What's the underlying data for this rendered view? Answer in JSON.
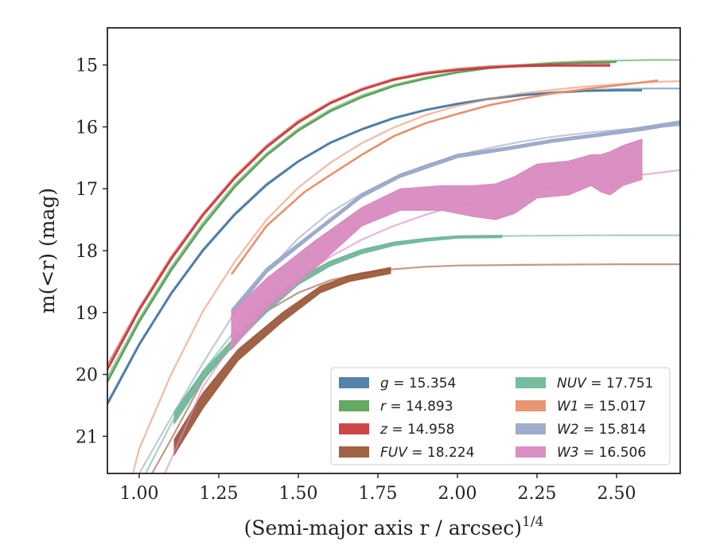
{
  "chart_data": {
    "type": "line",
    "xlabel": {
      "main": "(Semi-major axis r / arcsec)",
      "sup": "1/4"
    },
    "ylabel": "m(<r) (mag)",
    "xlim": [
      0.9,
      2.7
    ],
    "ylim": [
      21.6,
      14.4
    ],
    "y_inverted": true,
    "xticks": [
      1.0,
      1.25,
      1.5,
      1.75,
      2.0,
      2.25,
      2.5
    ],
    "xtick_labels": [
      "1.00",
      "1.25",
      "1.50",
      "1.75",
      "2.00",
      "2.25",
      "2.50"
    ],
    "yticks": [
      15,
      16,
      17,
      18,
      19,
      20,
      21
    ],
    "ytick_labels": [
      "15",
      "16",
      "17",
      "18",
      "19",
      "20",
      "21"
    ],
    "grid": false,
    "legend_position": "lower-right",
    "series": [
      {
        "name": "g = 15.354",
        "legend": {
          "var": "g",
          "value": "15.354"
        },
        "color": "#4c7ba6",
        "model": [
          [
            0.9,
            20.45
          ],
          [
            1.0,
            19.5
          ],
          [
            1.1,
            18.68
          ],
          [
            1.2,
            17.98
          ],
          [
            1.3,
            17.4
          ],
          [
            1.4,
            16.92
          ],
          [
            1.5,
            16.55
          ],
          [
            1.6,
            16.25
          ],
          [
            1.7,
            16.03
          ],
          [
            1.8,
            15.85
          ],
          [
            1.9,
            15.72
          ],
          [
            2.0,
            15.62
          ],
          [
            2.1,
            15.54
          ],
          [
            2.2,
            15.48
          ],
          [
            2.3,
            15.44
          ],
          [
            2.4,
            15.41
          ],
          [
            2.5,
            15.39
          ],
          [
            2.6,
            15.38
          ],
          [
            2.7,
            15.38
          ]
        ],
        "data": [
          [
            0.9,
            20.48
          ],
          [
            1.0,
            19.52
          ],
          [
            1.1,
            18.7
          ],
          [
            1.2,
            18.0
          ],
          [
            1.3,
            17.42
          ],
          [
            1.4,
            16.94
          ],
          [
            1.5,
            16.56
          ],
          [
            1.6,
            16.26
          ],
          [
            1.7,
            16.04
          ],
          [
            1.8,
            15.86
          ],
          [
            1.9,
            15.73
          ],
          [
            2.0,
            15.63
          ],
          [
            2.1,
            15.55
          ],
          [
            2.2,
            15.49
          ],
          [
            2.3,
            15.45
          ],
          [
            2.4,
            15.42
          ],
          [
            2.5,
            15.41
          ],
          [
            2.58,
            15.41
          ]
        ],
        "band": []
      },
      {
        "name": "r = 14.893",
        "legend": {
          "var": "r",
          "value": "14.893"
        },
        "color": "#5ba35b",
        "model": [
          [
            0.9,
            20.05
          ],
          [
            1.0,
            19.1
          ],
          [
            1.1,
            18.27
          ],
          [
            1.2,
            17.55
          ],
          [
            1.3,
            16.93
          ],
          [
            1.4,
            16.43
          ],
          [
            1.5,
            16.03
          ],
          [
            1.6,
            15.72
          ],
          [
            1.7,
            15.49
          ],
          [
            1.8,
            15.32
          ],
          [
            1.9,
            15.2
          ],
          [
            2.0,
            15.11
          ],
          [
            2.1,
            15.04
          ],
          [
            2.2,
            15.0
          ],
          [
            2.3,
            14.96
          ],
          [
            2.4,
            14.94
          ],
          [
            2.5,
            14.93
          ],
          [
            2.6,
            14.92
          ],
          [
            2.7,
            14.92
          ]
        ],
        "data": [
          [
            0.9,
            20.12
          ],
          [
            1.0,
            19.15
          ],
          [
            1.1,
            18.32
          ],
          [
            1.2,
            17.6
          ],
          [
            1.3,
            16.97
          ],
          [
            1.4,
            16.46
          ],
          [
            1.5,
            16.06
          ],
          [
            1.6,
            15.75
          ],
          [
            1.7,
            15.52
          ],
          [
            1.8,
            15.34
          ],
          [
            1.9,
            15.22
          ],
          [
            2.0,
            15.12
          ],
          [
            2.1,
            15.05
          ],
          [
            2.2,
            15.01
          ],
          [
            2.3,
            14.98
          ],
          [
            2.4,
            14.96
          ],
          [
            2.5,
            14.95
          ]
        ],
        "band": []
      },
      {
        "name": "z = 14.958",
        "legend": {
          "var": "z",
          "value": "14.958"
        },
        "color": "#cc3c3c",
        "model": [
          [
            0.9,
            19.85
          ],
          [
            1.0,
            18.92
          ],
          [
            1.1,
            18.1
          ],
          [
            1.2,
            17.4
          ],
          [
            1.3,
            16.8
          ],
          [
            1.4,
            16.3
          ],
          [
            1.5,
            15.9
          ],
          [
            1.6,
            15.6
          ],
          [
            1.7,
            15.38
          ],
          [
            1.8,
            15.22
          ],
          [
            1.9,
            15.12
          ],
          [
            2.0,
            15.06
          ],
          [
            2.1,
            15.02
          ],
          [
            2.2,
            15.0
          ],
          [
            2.3,
            14.99
          ],
          [
            2.4,
            14.98
          ],
          [
            2.48,
            14.98
          ]
        ],
        "data": [
          [
            0.9,
            19.92
          ],
          [
            1.0,
            18.96
          ],
          [
            1.1,
            18.14
          ],
          [
            1.2,
            17.43
          ],
          [
            1.3,
            16.83
          ],
          [
            1.4,
            16.33
          ],
          [
            1.5,
            15.93
          ],
          [
            1.6,
            15.62
          ],
          [
            1.7,
            15.4
          ],
          [
            1.8,
            15.24
          ],
          [
            1.9,
            15.14
          ],
          [
            2.0,
            15.08
          ],
          [
            2.1,
            15.04
          ],
          [
            2.2,
            15.02
          ],
          [
            2.3,
            15.01
          ],
          [
            2.4,
            15.01
          ],
          [
            2.48,
            15.01
          ]
        ],
        "band": []
      },
      {
        "name": "FUV = 18.224",
        "legend": {
          "var": "FUV",
          "value": "18.224"
        },
        "color": "#9c5a3c",
        "model": [
          [
            1.04,
            21.6
          ],
          [
            1.1,
            21.05
          ],
          [
            1.2,
            20.1
          ],
          [
            1.3,
            19.45
          ],
          [
            1.4,
            18.98
          ],
          [
            1.5,
            18.68
          ],
          [
            1.6,
            18.48
          ],
          [
            1.7,
            18.36
          ],
          [
            1.8,
            18.3
          ],
          [
            1.9,
            18.26
          ],
          [
            2.0,
            18.24
          ],
          [
            2.2,
            18.23
          ],
          [
            2.5,
            18.22
          ],
          [
            2.7,
            18.22
          ]
        ],
        "data": [],
        "band": [
          [
            1.11,
            21.05,
            21.3
          ],
          [
            1.2,
            20.3,
            20.55
          ],
          [
            1.31,
            19.6,
            19.78
          ],
          [
            1.45,
            19.0,
            19.15
          ],
          [
            1.57,
            18.57,
            18.68
          ],
          [
            1.66,
            18.4,
            18.5
          ],
          [
            1.79,
            18.27,
            18.37
          ]
        ]
      },
      {
        "name": "NUV = 17.751",
        "legend": {
          "var": "NUV",
          "value": "17.751"
        },
        "color": "#6fb89a",
        "model": [
          [
            1.02,
            21.6
          ],
          [
            1.1,
            20.8
          ],
          [
            1.2,
            19.95
          ],
          [
            1.3,
            19.3
          ],
          [
            1.4,
            18.82
          ],
          [
            1.5,
            18.45
          ],
          [
            1.6,
            18.18
          ],
          [
            1.7,
            18.0
          ],
          [
            1.8,
            17.88
          ],
          [
            1.9,
            17.81
          ],
          [
            2.0,
            17.78
          ],
          [
            2.2,
            17.76
          ],
          [
            2.5,
            17.75
          ],
          [
            2.7,
            17.75
          ]
        ],
        "data": [],
        "band": [
          [
            1.11,
            20.6,
            20.8
          ],
          [
            1.2,
            19.95,
            20.1
          ],
          [
            1.3,
            19.4,
            19.52
          ],
          [
            1.4,
            18.9,
            19.0
          ],
          [
            1.5,
            18.45,
            18.55
          ],
          [
            1.6,
            18.17,
            18.25
          ],
          [
            1.7,
            17.98,
            18.05
          ],
          [
            1.8,
            17.86,
            17.92
          ],
          [
            1.9,
            17.8,
            17.85
          ],
          [
            2.0,
            17.76,
            17.8
          ],
          [
            2.14,
            17.75,
            17.79
          ]
        ]
      },
      {
        "name": "W1 = 15.017",
        "legend": {
          "var": "W1",
          "value": "15.017"
        },
        "color": "#e8906a",
        "model": [
          [
            0.98,
            21.6
          ],
          [
            1.0,
            21.2
          ],
          [
            1.1,
            20.0
          ],
          [
            1.2,
            18.98
          ],
          [
            1.3,
            18.18
          ],
          [
            1.4,
            17.5
          ],
          [
            1.5,
            16.98
          ],
          [
            1.6,
            16.58
          ],
          [
            1.7,
            16.26
          ],
          [
            1.8,
            16.01
          ],
          [
            1.9,
            15.81
          ],
          [
            2.0,
            15.66
          ],
          [
            2.1,
            15.55
          ],
          [
            2.2,
            15.46
          ],
          [
            2.3,
            15.4
          ],
          [
            2.4,
            15.35
          ],
          [
            2.5,
            15.31
          ],
          [
            2.6,
            15.28
          ],
          [
            2.7,
            15.26
          ]
        ],
        "data": [
          [
            1.29,
            18.38
          ],
          [
            1.4,
            17.6
          ],
          [
            1.52,
            17.05
          ],
          [
            1.6,
            16.78
          ],
          [
            1.7,
            16.45
          ],
          [
            1.8,
            16.15
          ],
          [
            1.9,
            15.94
          ],
          [
            2.0,
            15.79
          ],
          [
            2.1,
            15.65
          ],
          [
            2.2,
            15.55
          ],
          [
            2.3,
            15.46
          ],
          [
            2.4,
            15.39
          ],
          [
            2.5,
            15.33
          ],
          [
            2.6,
            15.27
          ],
          [
            2.63,
            15.25
          ]
        ],
        "band": []
      },
      {
        "name": "W2 = 15.814",
        "legend": {
          "var": "W2",
          "value": "15.814"
        },
        "color": "#9aa8c8",
        "model": [
          [
            1.0,
            21.6
          ],
          [
            1.1,
            20.7
          ],
          [
            1.2,
            19.82
          ],
          [
            1.3,
            19.0
          ],
          [
            1.4,
            18.35
          ],
          [
            1.5,
            17.8
          ],
          [
            1.6,
            17.38
          ],
          [
            1.7,
            17.08
          ],
          [
            1.8,
            16.82
          ],
          [
            1.9,
            16.62
          ],
          [
            2.0,
            16.46
          ],
          [
            2.1,
            16.34
          ],
          [
            2.2,
            16.24
          ],
          [
            2.3,
            16.16
          ],
          [
            2.4,
            16.1
          ],
          [
            2.5,
            16.05
          ],
          [
            2.6,
            16.01
          ],
          [
            2.7,
            15.98
          ]
        ],
        "data": [],
        "band": [
          [
            1.29,
            18.95,
            19.05
          ],
          [
            1.4,
            18.28,
            18.36
          ],
          [
            1.55,
            17.68,
            17.74
          ],
          [
            1.7,
            17.08,
            17.14
          ],
          [
            1.82,
            16.76,
            16.82
          ],
          [
            2.0,
            16.44,
            16.5
          ],
          [
            2.15,
            16.33,
            16.38
          ],
          [
            2.3,
            16.2,
            16.25
          ],
          [
            2.45,
            16.1,
            16.15
          ],
          [
            2.58,
            16.0,
            16.06
          ],
          [
            2.7,
            15.9,
            15.96
          ]
        ]
      },
      {
        "name": "W3 = 16.506",
        "legend": {
          "var": "W3",
          "value": "16.506"
        },
        "color": "#d88ac0",
        "model": [
          [
            1.08,
            21.6
          ],
          [
            1.15,
            20.8
          ],
          [
            1.2,
            20.2
          ],
          [
            1.3,
            19.45
          ],
          [
            1.4,
            18.9
          ],
          [
            1.5,
            18.45
          ],
          [
            1.6,
            18.1
          ],
          [
            1.7,
            17.82
          ],
          [
            1.8,
            17.6
          ],
          [
            1.9,
            17.42
          ],
          [
            2.0,
            17.27
          ],
          [
            2.1,
            17.15
          ],
          [
            2.2,
            17.05
          ],
          [
            2.3,
            16.96
          ],
          [
            2.4,
            16.89
          ],
          [
            2.5,
            16.82
          ],
          [
            2.6,
            16.76
          ],
          [
            2.7,
            16.7
          ]
        ],
        "data": [],
        "band": [
          [
            1.29,
            19.0,
            19.6
          ],
          [
            1.4,
            18.45,
            18.95
          ],
          [
            1.55,
            17.85,
            18.3
          ],
          [
            1.7,
            17.3,
            17.6
          ],
          [
            1.82,
            17.0,
            17.35
          ],
          [
            1.95,
            16.95,
            17.35
          ],
          [
            2.05,
            16.95,
            17.45
          ],
          [
            2.12,
            16.92,
            17.5
          ],
          [
            2.18,
            16.8,
            17.4
          ],
          [
            2.25,
            16.6,
            17.15
          ],
          [
            2.35,
            16.55,
            17.1
          ],
          [
            2.42,
            16.45,
            16.95
          ],
          [
            2.45,
            16.45,
            17.05
          ],
          [
            2.48,
            16.4,
            17.1
          ],
          [
            2.52,
            16.3,
            16.95
          ],
          [
            2.58,
            16.2,
            16.85
          ]
        ]
      }
    ]
  }
}
